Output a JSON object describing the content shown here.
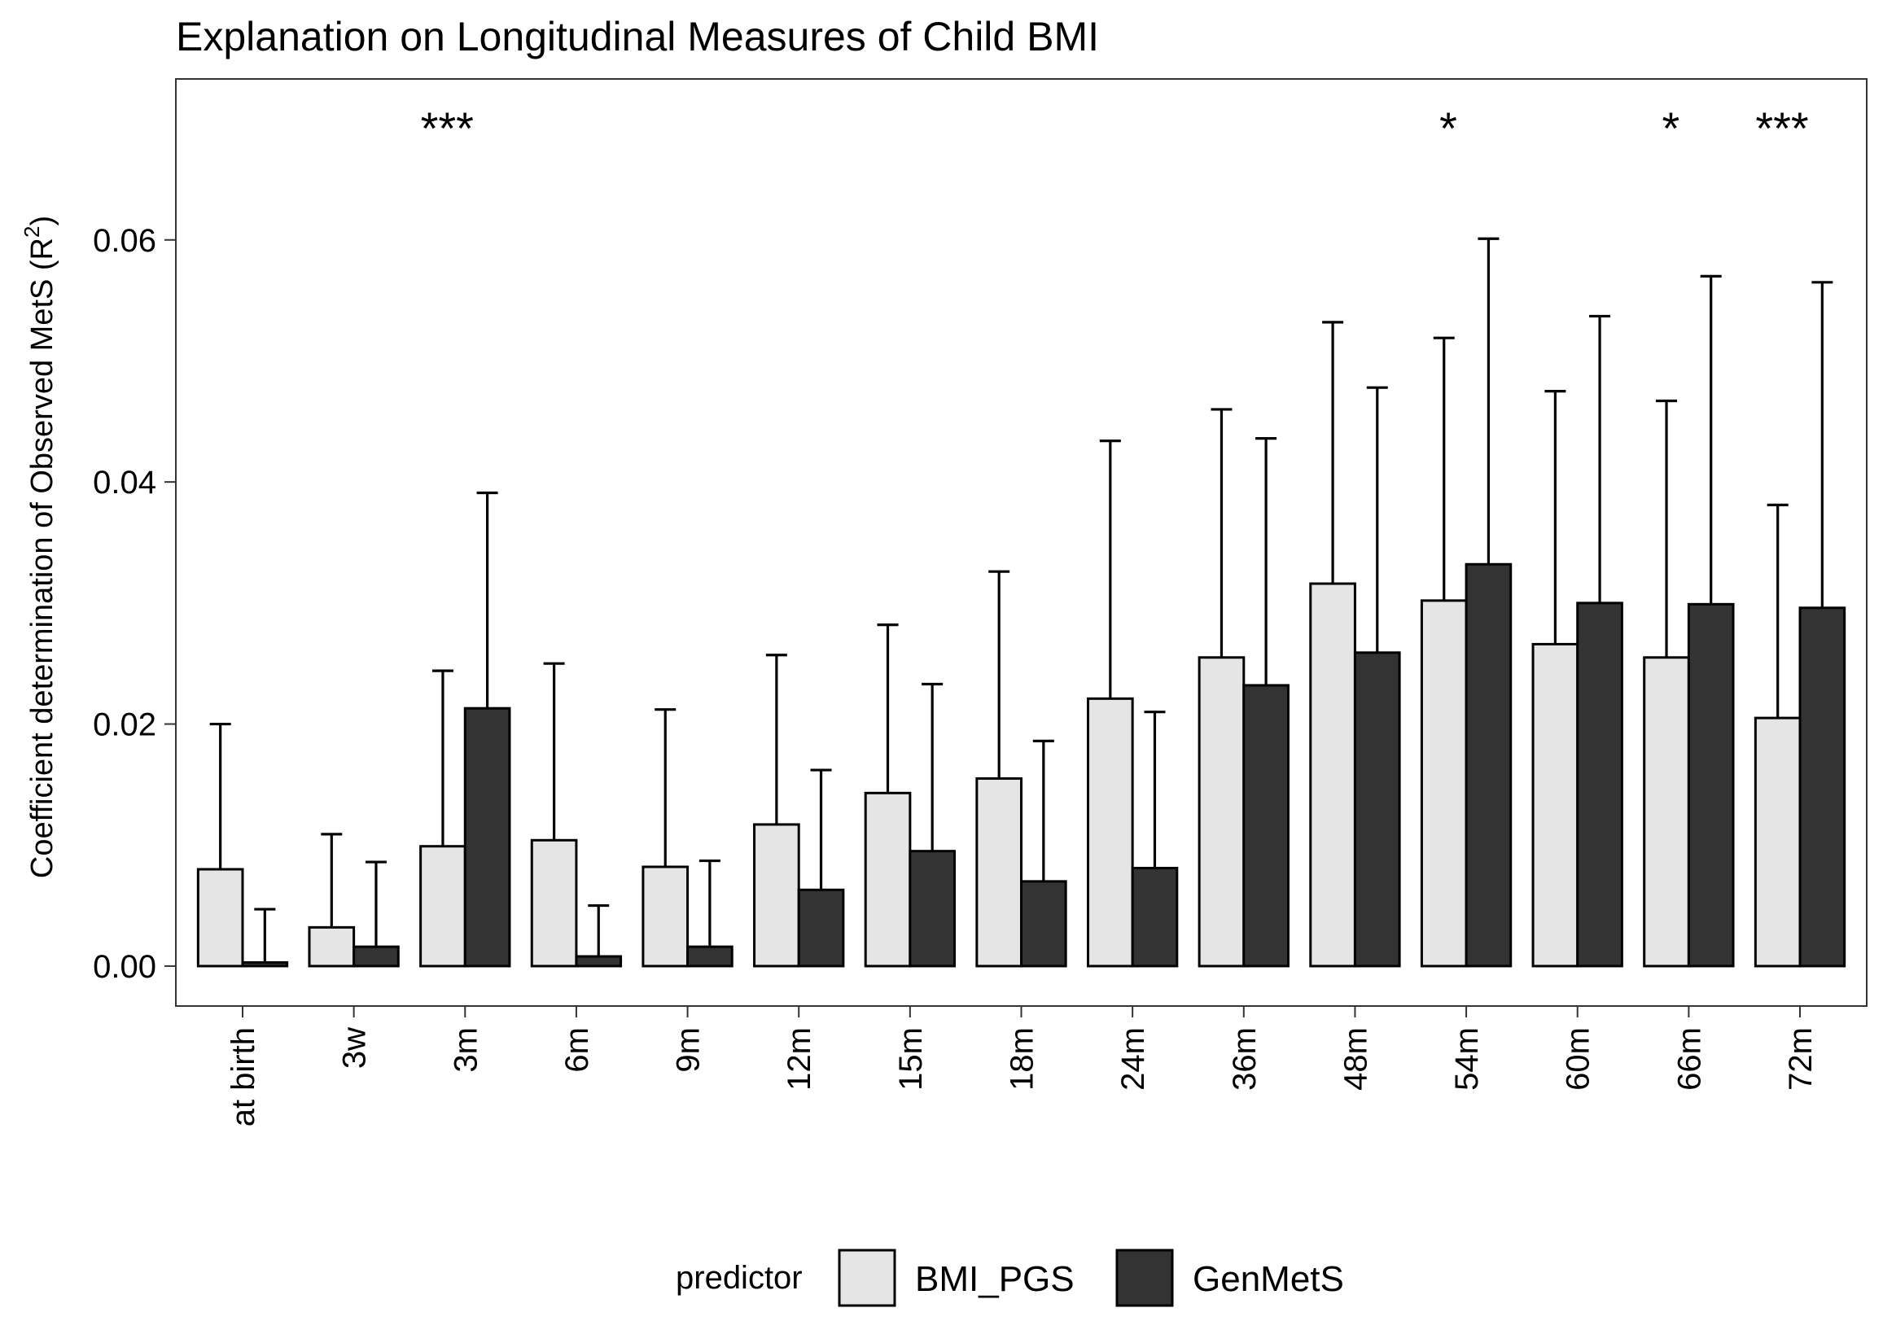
{
  "chart_data": {
    "type": "bar",
    "title": "Explanation on Longitudinal Measures of Child BMI",
    "ylabel_main": "Coefficient determination of Observed MetS  (R",
    "ylabel_sup": "2",
    "ylabel_end": ")",
    "xlabel": "",
    "ylim": [
      -0.0033,
      0.0733
    ],
    "yticks": [
      "0.00",
      "0.02",
      "0.04",
      "0.06"
    ],
    "ytick_values": [
      0,
      0.02,
      0.04,
      0.06
    ],
    "grid": false,
    "legend": {
      "title": "predictor",
      "position": "bottom"
    },
    "categories": [
      "at birth",
      "3w",
      "3m",
      "6m",
      "9m",
      "12m",
      "15m",
      "18m",
      "24m",
      "36m",
      "48m",
      "54m",
      "60m",
      "66m",
      "72m"
    ],
    "series": [
      {
        "name": "BMI_PGS",
        "color": "#e5e5e5",
        "values": [
          0.008,
          0.0032,
          0.0099,
          0.0104,
          0.0082,
          0.0117,
          0.0143,
          0.0155,
          0.0221,
          0.0255,
          0.0316,
          0.0302,
          0.0266,
          0.0255,
          0.0205
        ],
        "upper": [
          0.02,
          0.0109,
          0.0244,
          0.025,
          0.0212,
          0.0257,
          0.0282,
          0.0326,
          0.0434,
          0.046,
          0.0532,
          0.0519,
          0.0475,
          0.0467,
          0.0381
        ]
      },
      {
        "name": "GenMetS",
        "color": "#333333",
        "values": [
          0.0003,
          0.0016,
          0.0213,
          0.0008,
          0.0016,
          0.0063,
          0.0095,
          0.007,
          0.0081,
          0.0232,
          0.0259,
          0.0332,
          0.03,
          0.0299,
          0.0296
        ],
        "upper": [
          0.0047,
          0.0086,
          0.0391,
          0.005,
          0.0087,
          0.0162,
          0.0233,
          0.0186,
          0.021,
          0.0436,
          0.0478,
          0.0601,
          0.0537,
          0.057,
          0.0565
        ]
      }
    ],
    "annotations": [
      {
        "text": "***",
        "category": "3m"
      },
      {
        "text": "*",
        "category": "54m"
      },
      {
        "text": "*",
        "category": "66m"
      },
      {
        "text": "***",
        "category": "72m"
      }
    ]
  }
}
